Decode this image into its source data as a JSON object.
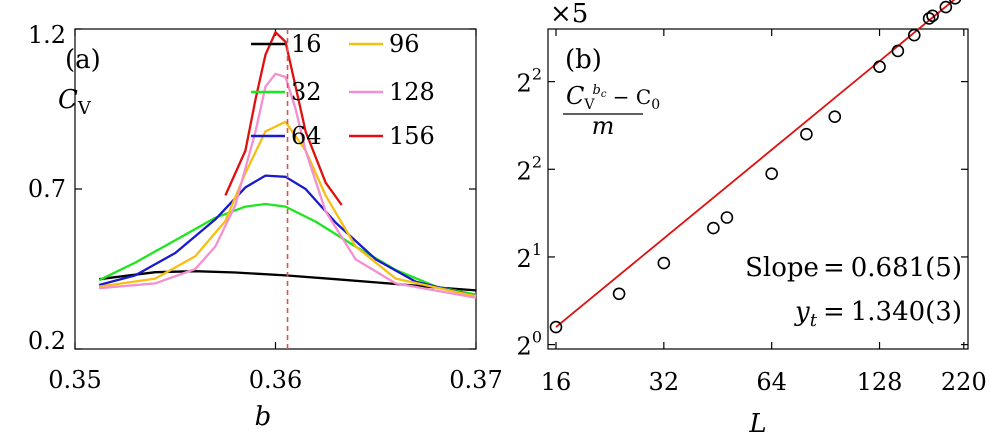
{
  "chart_data": [
    {
      "type": "line",
      "panel_label": "(a)",
      "ylabel": "C",
      "ylabel_sub": "V",
      "xlabel": "b",
      "xlim": [
        0.35,
        0.37
      ],
      "ylim": [
        0.2,
        1.2
      ],
      "xticks": [
        "0.35",
        "0.36",
        "0.37"
      ],
      "yticks": [
        "0.2",
        "0.7",
        "1.2"
      ],
      "critical_line_x": 0.3606,
      "legend_position": "top-right",
      "series": [
        {
          "name": "16",
          "color": "#000000",
          "x": [
            0.3512,
            0.354,
            0.356,
            0.358,
            0.3605,
            0.363,
            0.366,
            0.3685,
            0.37
          ],
          "y": [
            0.418,
            0.44,
            0.443,
            0.439,
            0.43,
            0.418,
            0.403,
            0.39,
            0.383
          ]
        },
        {
          "name": "32",
          "color": "#1ee61e",
          "x": [
            0.3512,
            0.353,
            0.355,
            0.357,
            0.3585,
            0.3595,
            0.3605,
            0.362,
            0.364,
            0.366,
            0.368,
            0.37
          ],
          "y": [
            0.415,
            0.47,
            0.54,
            0.61,
            0.645,
            0.653,
            0.645,
            0.598,
            0.52,
            0.447,
            0.395,
            0.37
          ]
        },
        {
          "name": "64",
          "color": "#1a1acc",
          "x": [
            0.3512,
            0.353,
            0.355,
            0.357,
            0.3585,
            0.3595,
            0.3605,
            0.3615,
            0.363,
            0.365,
            0.367,
            0.37
          ],
          "y": [
            0.4,
            0.43,
            0.5,
            0.605,
            0.705,
            0.742,
            0.738,
            0.7,
            0.595,
            0.48,
            0.41,
            0.365
          ]
        },
        {
          "name": "96",
          "color": "#f5c011",
          "x": [
            0.3512,
            0.354,
            0.356,
            0.3575,
            0.3585,
            0.3595,
            0.3605,
            0.3615,
            0.3625,
            0.364,
            0.366,
            0.37
          ],
          "y": [
            0.395,
            0.42,
            0.49,
            0.6,
            0.75,
            0.88,
            0.91,
            0.82,
            0.68,
            0.52,
            0.42,
            0.365
          ]
        },
        {
          "name": "128",
          "color": "#f48fd0",
          "x": [
            0.3512,
            0.354,
            0.356,
            0.357,
            0.358,
            0.359,
            0.3595,
            0.36,
            0.3605,
            0.361,
            0.3615,
            0.3625,
            0.364,
            0.366,
            0.37
          ],
          "y": [
            0.39,
            0.405,
            0.45,
            0.52,
            0.65,
            0.88,
            1.02,
            1.06,
            1.05,
            0.95,
            0.82,
            0.63,
            0.48,
            0.405,
            0.36
          ]
        },
        {
          "name": "156",
          "color": "#e01010",
          "x": [
            0.3575,
            0.3585,
            0.359,
            0.3595,
            0.36,
            0.3605,
            0.361,
            0.3615,
            0.3625,
            0.3633
          ],
          "y": [
            0.68,
            0.82,
            0.98,
            1.12,
            1.19,
            1.16,
            1.02,
            0.88,
            0.72,
            0.65
          ]
        }
      ]
    },
    {
      "type": "scatter",
      "panel_label": "(b)",
      "multiplier_label": "×5",
      "ylabel": "(C_V^{b_c} − C_0)/m",
      "ylabel_num_main": "C",
      "ylabel_num_sub": "V",
      "ylabel_num_sup": "b",
      "ylabel_num_sup_sub": "c",
      "ylabel_num_rest": " − C",
      "ylabel_num_rest_sub": "0",
      "ylabel_den": "m",
      "xlabel": "L",
      "x_scale": "log2",
      "y_scale": "log2",
      "xlim": [
        15.2,
        226
      ],
      "ylim": [
        0.95,
        4.6
      ],
      "xticks": [
        16,
        32,
        64,
        128,
        220
      ],
      "xtick_labels": [
        "16",
        "32",
        "64",
        "128",
        "220"
      ],
      "yticks": [
        1,
        2,
        3,
        4
      ],
      "ytick_base": "2",
      "ytick_exps": [
        "0",
        "1",
        "2",
        "2"
      ],
      "points": {
        "x": [
          16,
          24,
          32,
          44,
          48,
          64,
          80,
          96,
          128,
          144,
          160,
          176,
          180,
          196,
          208
        ],
        "y": [
          1.2,
          1.58,
          1.93,
          2.33,
          2.45,
          2.95,
          3.4,
          3.6,
          4.17,
          4.35,
          4.53,
          4.72,
          4.75,
          4.85,
          4.95
        ]
      },
      "fit_line": {
        "x": [
          16,
          212
        ],
        "y": [
          1.2,
          4.97
        ],
        "color": "#e01010"
      },
      "annotations": [
        "Slope = 0.681(5)",
        "y_t = 1.340(3)"
      ],
      "annotation_slope_label": "Slope",
      "annotation_slope_value": "0.681(5)",
      "annotation_yt_symbol": "y",
      "annotation_yt_sub": "t",
      "annotation_yt_value": "1.340(3)"
    }
  ]
}
